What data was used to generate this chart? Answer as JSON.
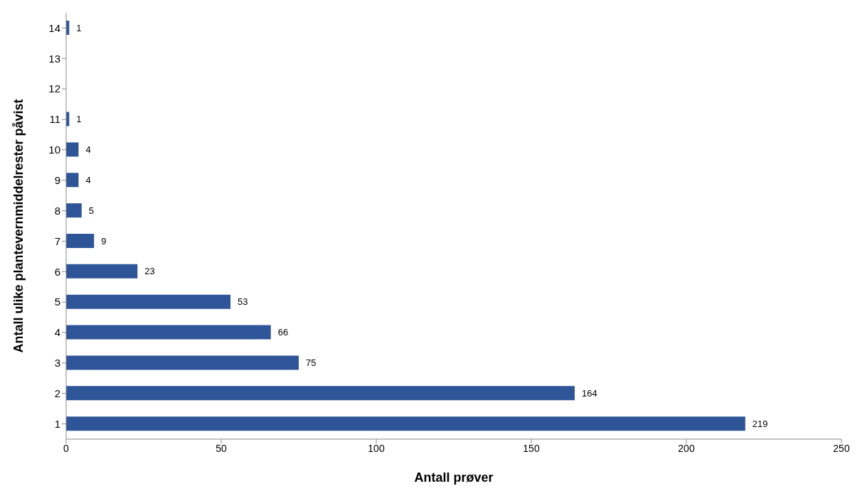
{
  "chart_data": {
    "type": "bar",
    "orientation": "horizontal",
    "xlabel": "Antall prøver",
    "ylabel": "Antall ulike plantevernmiddelrester påvist",
    "categories": [
      "14",
      "13",
      "12",
      "11",
      "10",
      "9",
      "8",
      "7",
      "6",
      "5",
      "4",
      "3",
      "2",
      "1"
    ],
    "values": [
      1,
      null,
      null,
      1,
      4,
      4,
      5,
      9,
      23,
      53,
      66,
      75,
      164,
      219
    ],
    "color": "#2e5597",
    "xlim": [
      0,
      250
    ],
    "xticks": [
      0,
      50,
      100,
      150,
      200,
      250
    ],
    "grid": false,
    "data_labels": true,
    "legend": false
  }
}
